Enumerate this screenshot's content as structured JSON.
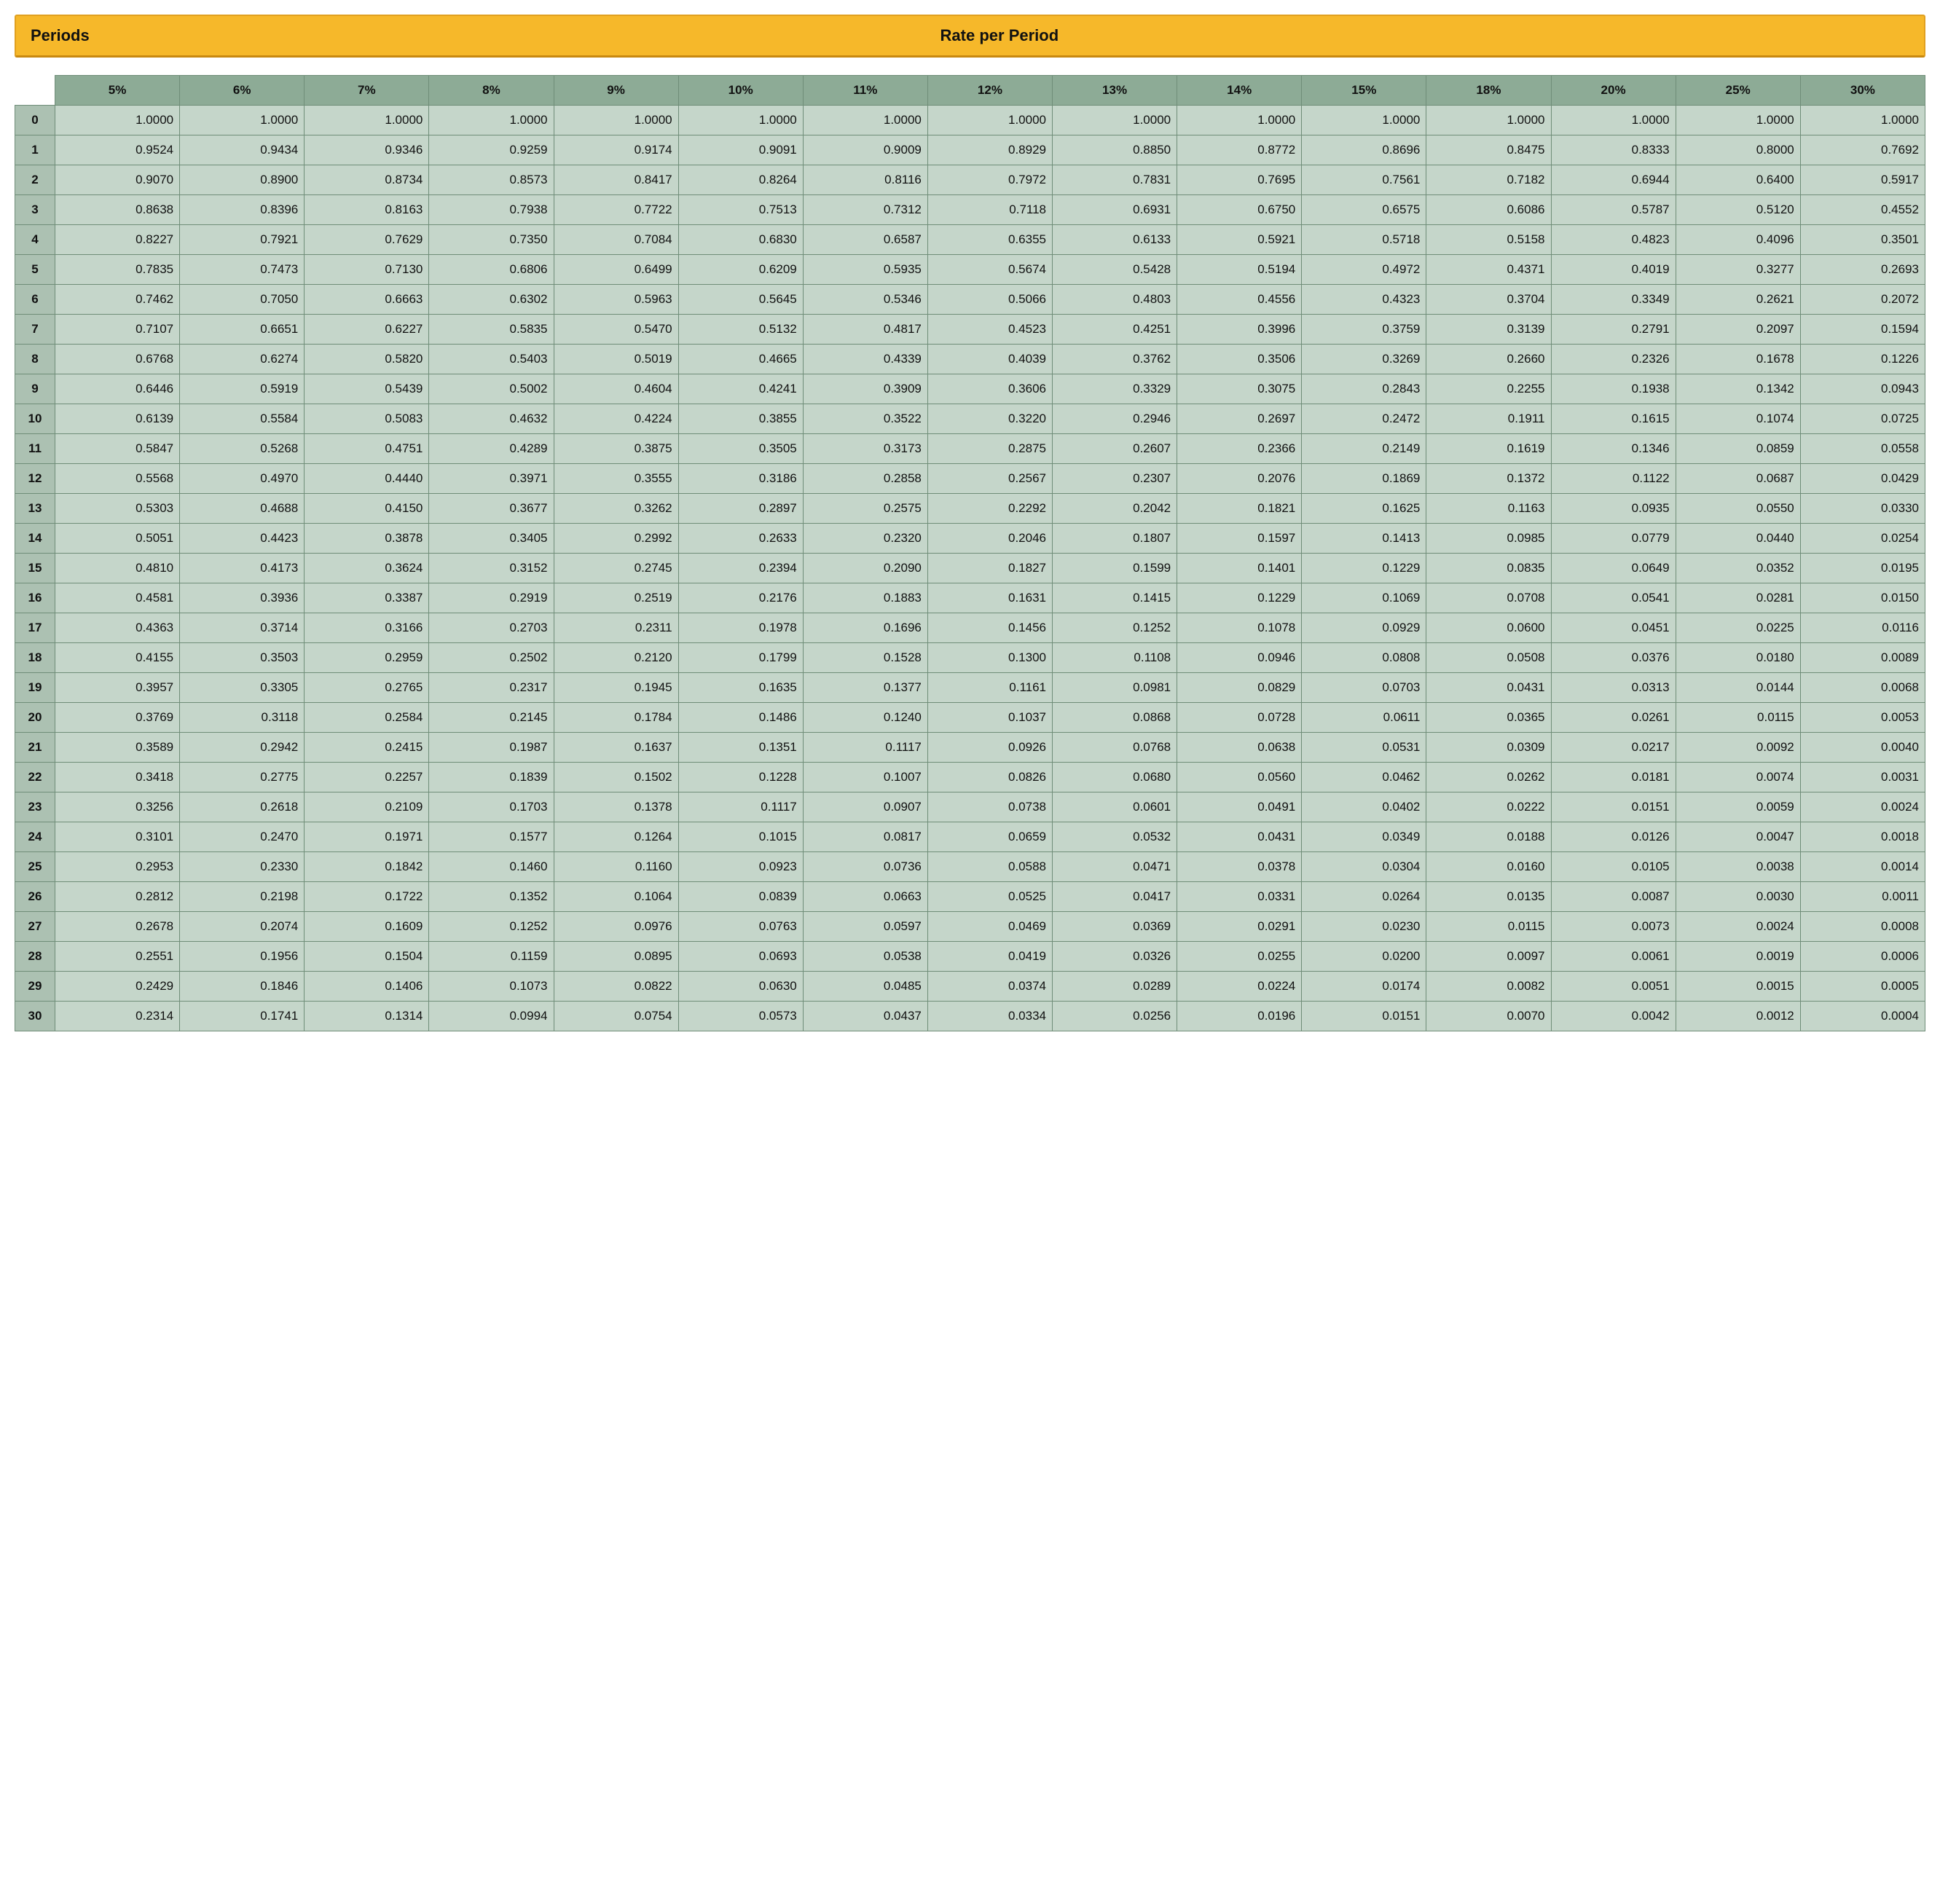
{
  "header": {
    "periods_label": "Periods",
    "rate_label": "Rate per Period"
  },
  "columns": [
    "5%",
    "6%",
    "7%",
    "8%",
    "9%",
    "10%",
    "11%",
    "12%",
    "13%",
    "14%",
    "15%",
    "18%",
    "20%",
    "25%",
    "30%"
  ],
  "rows": [
    {
      "period": "0",
      "values": [
        "1.0000",
        "1.0000",
        "1.0000",
        "1.0000",
        "1.0000",
        "1.0000",
        "1.0000",
        "1.0000",
        "1.0000",
        "1.0000",
        "1.0000",
        "1.0000",
        "1.0000",
        "1.0000",
        "1.0000"
      ]
    },
    {
      "period": "1",
      "values": [
        "0.9524",
        "0.9434",
        "0.9346",
        "0.9259",
        "0.9174",
        "0.9091",
        "0.9009",
        "0.8929",
        "0.8850",
        "0.8772",
        "0.8696",
        "0.8475",
        "0.8333",
        "0.8000",
        "0.7692"
      ]
    },
    {
      "period": "2",
      "values": [
        "0.9070",
        "0.8900",
        "0.8734",
        "0.8573",
        "0.8417",
        "0.8264",
        "0.8116",
        "0.7972",
        "0.7831",
        "0.7695",
        "0.7561",
        "0.7182",
        "0.6944",
        "0.6400",
        "0.5917"
      ]
    },
    {
      "period": "3",
      "values": [
        "0.8638",
        "0.8396",
        "0.8163",
        "0.7938",
        "0.7722",
        "0.7513",
        "0.7312",
        "0.7118",
        "0.6931",
        "0.6750",
        "0.6575",
        "0.6086",
        "0.5787",
        "0.5120",
        "0.4552"
      ]
    },
    {
      "period": "4",
      "values": [
        "0.8227",
        "0.7921",
        "0.7629",
        "0.7350",
        "0.7084",
        "0.6830",
        "0.6587",
        "0.6355",
        "0.6133",
        "0.5921",
        "0.5718",
        "0.5158",
        "0.4823",
        "0.4096",
        "0.3501"
      ]
    },
    {
      "period": "5",
      "values": [
        "0.7835",
        "0.7473",
        "0.7130",
        "0.6806",
        "0.6499",
        "0.6209",
        "0.5935",
        "0.5674",
        "0.5428",
        "0.5194",
        "0.4972",
        "0.4371",
        "0.4019",
        "0.3277",
        "0.2693"
      ]
    },
    {
      "period": "6",
      "values": [
        "0.7462",
        "0.7050",
        "0.6663",
        "0.6302",
        "0.5963",
        "0.5645",
        "0.5346",
        "0.5066",
        "0.4803",
        "0.4556",
        "0.4323",
        "0.3704",
        "0.3349",
        "0.2621",
        "0.2072"
      ]
    },
    {
      "period": "7",
      "values": [
        "0.7107",
        "0.6651",
        "0.6227",
        "0.5835",
        "0.5470",
        "0.5132",
        "0.4817",
        "0.4523",
        "0.4251",
        "0.3996",
        "0.3759",
        "0.3139",
        "0.2791",
        "0.2097",
        "0.1594"
      ]
    },
    {
      "period": "8",
      "values": [
        "0.6768",
        "0.6274",
        "0.5820",
        "0.5403",
        "0.5019",
        "0.4665",
        "0.4339",
        "0.4039",
        "0.3762",
        "0.3506",
        "0.3269",
        "0.2660",
        "0.2326",
        "0.1678",
        "0.1226"
      ]
    },
    {
      "period": "9",
      "values": [
        "0.6446",
        "0.5919",
        "0.5439",
        "0.5002",
        "0.4604",
        "0.4241",
        "0.3909",
        "0.3606",
        "0.3329",
        "0.3075",
        "0.2843",
        "0.2255",
        "0.1938",
        "0.1342",
        "0.0943"
      ]
    },
    {
      "period": "10",
      "values": [
        "0.6139",
        "0.5584",
        "0.5083",
        "0.4632",
        "0.4224",
        "0.3855",
        "0.3522",
        "0.3220",
        "0.2946",
        "0.2697",
        "0.2472",
        "0.1911",
        "0.1615",
        "0.1074",
        "0.0725"
      ]
    },
    {
      "period": "11",
      "values": [
        "0.5847",
        "0.5268",
        "0.4751",
        "0.4289",
        "0.3875",
        "0.3505",
        "0.3173",
        "0.2875",
        "0.2607",
        "0.2366",
        "0.2149",
        "0.1619",
        "0.1346",
        "0.0859",
        "0.0558"
      ]
    },
    {
      "period": "12",
      "values": [
        "0.5568",
        "0.4970",
        "0.4440",
        "0.3971",
        "0.3555",
        "0.3186",
        "0.2858",
        "0.2567",
        "0.2307",
        "0.2076",
        "0.1869",
        "0.1372",
        "0.1122",
        "0.0687",
        "0.0429"
      ]
    },
    {
      "period": "13",
      "values": [
        "0.5303",
        "0.4688",
        "0.4150",
        "0.3677",
        "0.3262",
        "0.2897",
        "0.2575",
        "0.2292",
        "0.2042",
        "0.1821",
        "0.1625",
        "0.1163",
        "0.0935",
        "0.0550",
        "0.0330"
      ]
    },
    {
      "period": "14",
      "values": [
        "0.5051",
        "0.4423",
        "0.3878",
        "0.3405",
        "0.2992",
        "0.2633",
        "0.2320",
        "0.2046",
        "0.1807",
        "0.1597",
        "0.1413",
        "0.0985",
        "0.0779",
        "0.0440",
        "0.0254"
      ]
    },
    {
      "period": "15",
      "values": [
        "0.4810",
        "0.4173",
        "0.3624",
        "0.3152",
        "0.2745",
        "0.2394",
        "0.2090",
        "0.1827",
        "0.1599",
        "0.1401",
        "0.1229",
        "0.0835",
        "0.0649",
        "0.0352",
        "0.0195"
      ]
    },
    {
      "period": "16",
      "values": [
        "0.4581",
        "0.3936",
        "0.3387",
        "0.2919",
        "0.2519",
        "0.2176",
        "0.1883",
        "0.1631",
        "0.1415",
        "0.1229",
        "0.1069",
        "0.0708",
        "0.0541",
        "0.0281",
        "0.0150"
      ]
    },
    {
      "period": "17",
      "values": [
        "0.4363",
        "0.3714",
        "0.3166",
        "0.2703",
        "0.2311",
        "0.1978",
        "0.1696",
        "0.1456",
        "0.1252",
        "0.1078",
        "0.0929",
        "0.0600",
        "0.0451",
        "0.0225",
        "0.0116"
      ]
    },
    {
      "period": "18",
      "values": [
        "0.4155",
        "0.3503",
        "0.2959",
        "0.2502",
        "0.2120",
        "0.1799",
        "0.1528",
        "0.1300",
        "0.1108",
        "0.0946",
        "0.0808",
        "0.0508",
        "0.0376",
        "0.0180",
        "0.0089"
      ]
    },
    {
      "period": "19",
      "values": [
        "0.3957",
        "0.3305",
        "0.2765",
        "0.2317",
        "0.1945",
        "0.1635",
        "0.1377",
        "0.1161",
        "0.0981",
        "0.0829",
        "0.0703",
        "0.0431",
        "0.0313",
        "0.0144",
        "0.0068"
      ]
    },
    {
      "period": "20",
      "values": [
        "0.3769",
        "0.3118",
        "0.2584",
        "0.2145",
        "0.1784",
        "0.1486",
        "0.1240",
        "0.1037",
        "0.0868",
        "0.0728",
        "0.0611",
        "0.0365",
        "0.0261",
        "0.0115",
        "0.0053"
      ]
    },
    {
      "period": "21",
      "values": [
        "0.3589",
        "0.2942",
        "0.2415",
        "0.1987",
        "0.1637",
        "0.1351",
        "0.1117",
        "0.0926",
        "0.0768",
        "0.0638",
        "0.0531",
        "0.0309",
        "0.0217",
        "0.0092",
        "0.0040"
      ]
    },
    {
      "period": "22",
      "values": [
        "0.3418",
        "0.2775",
        "0.2257",
        "0.1839",
        "0.1502",
        "0.1228",
        "0.1007",
        "0.0826",
        "0.0680",
        "0.0560",
        "0.0462",
        "0.0262",
        "0.0181",
        "0.0074",
        "0.0031"
      ]
    },
    {
      "period": "23",
      "values": [
        "0.3256",
        "0.2618",
        "0.2109",
        "0.1703",
        "0.1378",
        "0.1117",
        "0.0907",
        "0.0738",
        "0.0601",
        "0.0491",
        "0.0402",
        "0.0222",
        "0.0151",
        "0.0059",
        "0.0024"
      ]
    },
    {
      "period": "24",
      "values": [
        "0.3101",
        "0.2470",
        "0.1971",
        "0.1577",
        "0.1264",
        "0.1015",
        "0.0817",
        "0.0659",
        "0.0532",
        "0.0431",
        "0.0349",
        "0.0188",
        "0.0126",
        "0.0047",
        "0.0018"
      ]
    },
    {
      "period": "25",
      "values": [
        "0.2953",
        "0.2330",
        "0.1842",
        "0.1460",
        "0.1160",
        "0.0923",
        "0.0736",
        "0.0588",
        "0.0471",
        "0.0378",
        "0.0304",
        "0.0160",
        "0.0105",
        "0.0038",
        "0.0014"
      ]
    },
    {
      "period": "26",
      "values": [
        "0.2812",
        "0.2198",
        "0.1722",
        "0.1352",
        "0.1064",
        "0.0839",
        "0.0663",
        "0.0525",
        "0.0417",
        "0.0331",
        "0.0264",
        "0.0135",
        "0.0087",
        "0.0030",
        "0.0011"
      ]
    },
    {
      "period": "27",
      "values": [
        "0.2678",
        "0.2074",
        "0.1609",
        "0.1252",
        "0.0976",
        "0.0763",
        "0.0597",
        "0.0469",
        "0.0369",
        "0.0291",
        "0.0230",
        "0.0115",
        "0.0073",
        "0.0024",
        "0.0008"
      ]
    },
    {
      "period": "28",
      "values": [
        "0.2551",
        "0.1956",
        "0.1504",
        "0.1159",
        "0.0895",
        "0.0693",
        "0.0538",
        "0.0419",
        "0.0326",
        "0.0255",
        "0.0200",
        "0.0097",
        "0.0061",
        "0.0019",
        "0.0006"
      ]
    },
    {
      "period": "29",
      "values": [
        "0.2429",
        "0.1846",
        "0.1406",
        "0.1073",
        "0.0822",
        "0.0630",
        "0.0485",
        "0.0374",
        "0.0289",
        "0.0224",
        "0.0174",
        "0.0082",
        "0.0051",
        "0.0015",
        "0.0005"
      ]
    },
    {
      "period": "30",
      "values": [
        "0.2314",
        "0.1741",
        "0.1314",
        "0.0994",
        "0.0754",
        "0.0573",
        "0.0437",
        "0.0334",
        "0.0256",
        "0.0196",
        "0.0151",
        "0.0070",
        "0.0042",
        "0.0012",
        "0.0004"
      ]
    }
  ],
  "styling": {
    "header_bg": "#f6b82a",
    "header_border": "#e0a020",
    "col_header_bg": "#8dab96",
    "row_header_bg": "#acc1b2",
    "cell_bg": "#c5d6ca",
    "border_color": "#6f8d78",
    "font_family": "Arial, Helvetica, sans-serif",
    "header_fontsize": 22,
    "cell_fontsize": 17
  }
}
